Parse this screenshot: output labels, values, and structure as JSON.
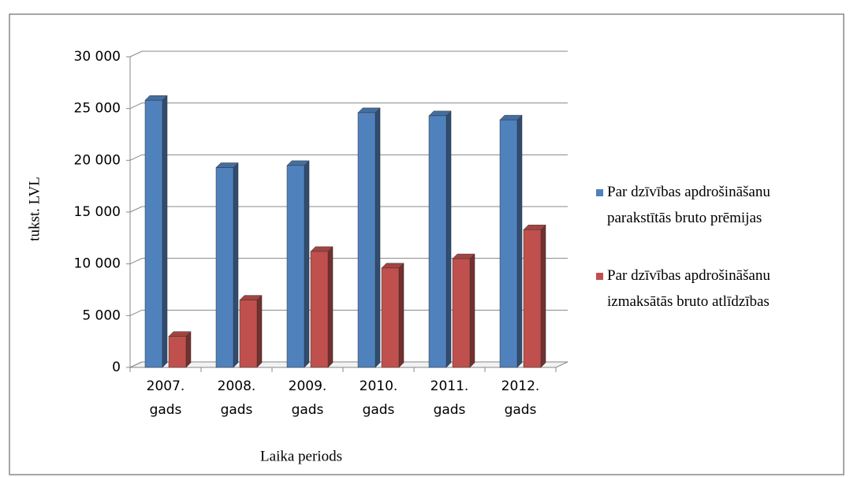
{
  "chart_data": {
    "type": "bar3d",
    "y_label": "tukst. LVL",
    "x_label": "Laika periods",
    "categories": [
      "2007. gads",
      "2008. gads",
      "2009. gads",
      "2010. gads",
      "2011. gads",
      "2012. gads"
    ],
    "series": [
      {
        "name": "Par dzīvības apdrošināšanu parakstītās bruto prēmijas",
        "color": "#4f81bd",
        "values": [
          25800,
          19300,
          19500,
          24600,
          24300,
          23900
        ]
      },
      {
        "name": "Par dzīvības apdrošināšanu izmaksātās bruto atlīdzības",
        "color": "#c0504d",
        "values": [
          3000,
          6500,
          11200,
          9600,
          10500,
          13300
        ]
      }
    ],
    "ylim": [
      0,
      30000
    ],
    "yticks": [
      0,
      {
        "value": 5000,
        "label": "5 000"
      },
      {
        "value": 10000,
        "label": "10 000"
      },
      {
        "value": 15000,
        "label": "15 000"
      },
      {
        "value": 20000,
        "label": "20 000"
      },
      {
        "value": 25000,
        "label": "25 000"
      },
      {
        "value": 30000,
        "label": "30 000"
      }
    ],
    "grid": true,
    "legend": "right"
  }
}
